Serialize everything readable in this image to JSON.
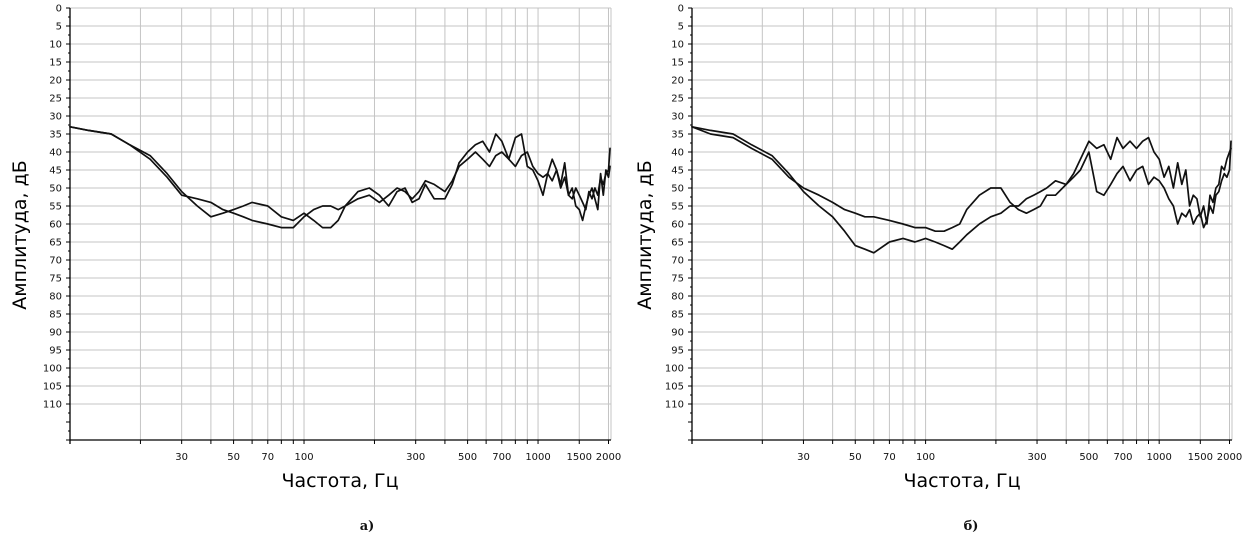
{
  "chart_data": [
    {
      "type": "line",
      "panel_label": "а)",
      "xlabel": "Частота, Гц",
      "ylabel": "Амплитуда, дБ",
      "x_scale": "log",
      "xlim": [
        10,
        2050
      ],
      "ylim": [
        0,
        120
      ],
      "y_inverted": true,
      "grid": true,
      "x_ticks": [
        30,
        50,
        70,
        100,
        300,
        500,
        700,
        1000,
        1500,
        2000
      ],
      "x_tick_labels": [
        "30",
        "50",
        "70",
        "100",
        "300",
        "500",
        "700",
        "1000",
        "1500",
        "2000"
      ],
      "y_ticks": [
        0,
        5,
        10,
        15,
        20,
        25,
        30,
        35,
        40,
        45,
        50,
        55,
        60,
        65,
        70,
        75,
        80,
        85,
        90,
        95,
        100,
        105,
        110
      ],
      "y_tick_labels": [
        "0",
        "5",
        "10",
        "15",
        "20",
        "25",
        "30",
        "35",
        "40",
        "45",
        "50",
        "55",
        "60",
        "65",
        "70",
        "75",
        "80",
        "85",
        "90",
        "95",
        "100",
        "105",
        "110"
      ],
      "series": [
        {
          "x": [
            10,
            12,
            15,
            18,
            22,
            26,
            30,
            35,
            40,
            45,
            50,
            55,
            60,
            70,
            80,
            90,
            100,
            110,
            120,
            130,
            140,
            150,
            170,
            190,
            210,
            230,
            250,
            270,
            290,
            310,
            330,
            360,
            400,
            430,
            460,
            500,
            540,
            580,
            620,
            660,
            700,
            750,
            800,
            850,
            900,
            950,
            1000,
            1050,
            1100,
            1150,
            1200,
            1250,
            1300,
            1350,
            1400,
            1450,
            1500,
            1550,
            1600,
            1650,
            1700,
            1750,
            1800,
            1850,
            1900,
            1950,
            2000,
            2030
          ],
          "y": [
            33,
            34,
            35,
            38,
            42,
            47,
            52,
            53,
            54,
            56,
            57,
            58,
            59,
            60,
            61,
            61,
            58,
            56,
            55,
            55,
            56,
            55,
            53,
            52,
            54,
            52,
            50,
            51,
            53,
            51,
            48,
            49,
            51,
            48,
            44,
            42,
            40,
            42,
            44,
            41,
            40,
            42,
            44,
            41,
            40,
            44,
            46,
            47,
            46,
            48,
            45,
            50,
            47,
            52,
            53,
            50,
            52,
            54,
            56,
            51,
            53,
            50,
            52,
            47,
            49,
            46,
            45,
            39
          ]
        },
        {
          "x": [
            10,
            12,
            15,
            18,
            22,
            26,
            30,
            35,
            40,
            45,
            50,
            55,
            60,
            70,
            80,
            90,
            100,
            110,
            120,
            130,
            140,
            150,
            170,
            190,
            210,
            230,
            250,
            270,
            290,
            310,
            330,
            360,
            400,
            430,
            460,
            500,
            540,
            580,
            620,
            660,
            700,
            750,
            800,
            850,
            900,
            950,
            1000,
            1050,
            1100,
            1150,
            1200,
            1250,
            1300,
            1350,
            1400,
            1450,
            1500,
            1550,
            1600,
            1650,
            1700,
            1750,
            1800,
            1850,
            1900,
            1950,
            2000,
            2030
          ],
          "y": [
            33,
            34,
            35,
            38,
            41,
            46,
            51,
            55,
            58,
            57,
            56,
            55,
            54,
            55,
            58,
            59,
            57,
            59,
            61,
            61,
            59,
            55,
            51,
            50,
            52,
            55,
            51,
            50,
            54,
            53,
            49,
            53,
            53,
            49,
            43,
            40,
            38,
            37,
            40,
            35,
            37,
            42,
            36,
            35,
            44,
            45,
            48,
            52,
            46,
            42,
            45,
            49,
            43,
            52,
            50,
            55,
            56,
            59,
            55,
            52,
            50,
            53,
            56,
            46,
            52,
            45,
            47,
            44
          ]
        }
      ]
    },
    {
      "type": "line",
      "panel_label": "б)",
      "xlabel": "Частота, Гц",
      "ylabel": "Амплитуда, дБ",
      "x_scale": "log",
      "xlim": [
        10,
        2050
      ],
      "ylim": [
        0,
        120
      ],
      "y_inverted": true,
      "grid": true,
      "x_ticks": [
        30,
        50,
        70,
        100,
        300,
        500,
        700,
        1000,
        1500,
        2000
      ],
      "x_tick_labels": [
        "30",
        "50",
        "70",
        "100",
        "300",
        "500",
        "700",
        "1000",
        "1500",
        "2000"
      ],
      "y_ticks": [
        0,
        5,
        10,
        15,
        20,
        25,
        30,
        35,
        40,
        45,
        50,
        55,
        60,
        65,
        70,
        75,
        80,
        85,
        90,
        95,
        100,
        105,
        110
      ],
      "y_tick_labels": [
        "0",
        "5",
        "10",
        "15",
        "20",
        "25",
        "30",
        "35",
        "40",
        "45",
        "50",
        "55",
        "60",
        "65",
        "70",
        "75",
        "80",
        "85",
        "90",
        "95",
        "100",
        "105",
        "110"
      ],
      "series": [
        {
          "x": [
            10,
            12,
            15,
            18,
            22,
            26,
            30,
            35,
            40,
            45,
            50,
            55,
            60,
            70,
            80,
            90,
            100,
            110,
            120,
            130,
            140,
            150,
            170,
            190,
            210,
            230,
            250,
            270,
            290,
            310,
            330,
            360,
            400,
            430,
            460,
            500,
            540,
            580,
            620,
            660,
            700,
            750,
            800,
            850,
            900,
            950,
            1000,
            1050,
            1100,
            1150,
            1200,
            1250,
            1300,
            1350,
            1400,
            1450,
            1500,
            1550,
            1600,
            1650,
            1700,
            1750,
            1800,
            1850,
            1900,
            1950,
            2000,
            2030
          ],
          "y": [
            33,
            34,
            35,
            38,
            41,
            46,
            51,
            55,
            58,
            62,
            66,
            67,
            68,
            65,
            64,
            65,
            64,
            65,
            66,
            67,
            65,
            63,
            60,
            58,
            57,
            55,
            55,
            53,
            52,
            51,
            50,
            48,
            49,
            47,
            45,
            40,
            51,
            52,
            49,
            46,
            44,
            48,
            45,
            44,
            49,
            47,
            48,
            50,
            53,
            55,
            60,
            57,
            58,
            56,
            60,
            58,
            57,
            61,
            59,
            55,
            57,
            52,
            51,
            48,
            46,
            47,
            45,
            37
          ]
        },
        {
          "x": [
            10,
            12,
            15,
            18,
            22,
            26,
            30,
            35,
            40,
            45,
            50,
            55,
            60,
            70,
            80,
            90,
            100,
            110,
            120,
            130,
            140,
            150,
            170,
            190,
            210,
            230,
            250,
            270,
            290,
            310,
            330,
            360,
            400,
            430,
            460,
            500,
            540,
            580,
            620,
            660,
            700,
            750,
            800,
            850,
            900,
            950,
            1000,
            1050,
            1100,
            1150,
            1200,
            1250,
            1300,
            1350,
            1400,
            1450,
            1500,
            1550,
            1600,
            1650,
            1700,
            1750,
            1800,
            1850,
            1900,
            1950,
            2000,
            2030
          ],
          "y": [
            33,
            35,
            36,
            39,
            42,
            47,
            50,
            52,
            54,
            56,
            57,
            58,
            58,
            59,
            60,
            61,
            61,
            62,
            62,
            61,
            60,
            56,
            52,
            50,
            50,
            54,
            56,
            57,
            56,
            55,
            52,
            52,
            49,
            46,
            42,
            37,
            39,
            38,
            42,
            36,
            39,
            37,
            39,
            37,
            36,
            40,
            42,
            47,
            44,
            50,
            43,
            49,
            45,
            55,
            52,
            53,
            58,
            55,
            60,
            52,
            54,
            50,
            49,
            44,
            45,
            42,
            40,
            39
          ]
        }
      ]
    }
  ]
}
